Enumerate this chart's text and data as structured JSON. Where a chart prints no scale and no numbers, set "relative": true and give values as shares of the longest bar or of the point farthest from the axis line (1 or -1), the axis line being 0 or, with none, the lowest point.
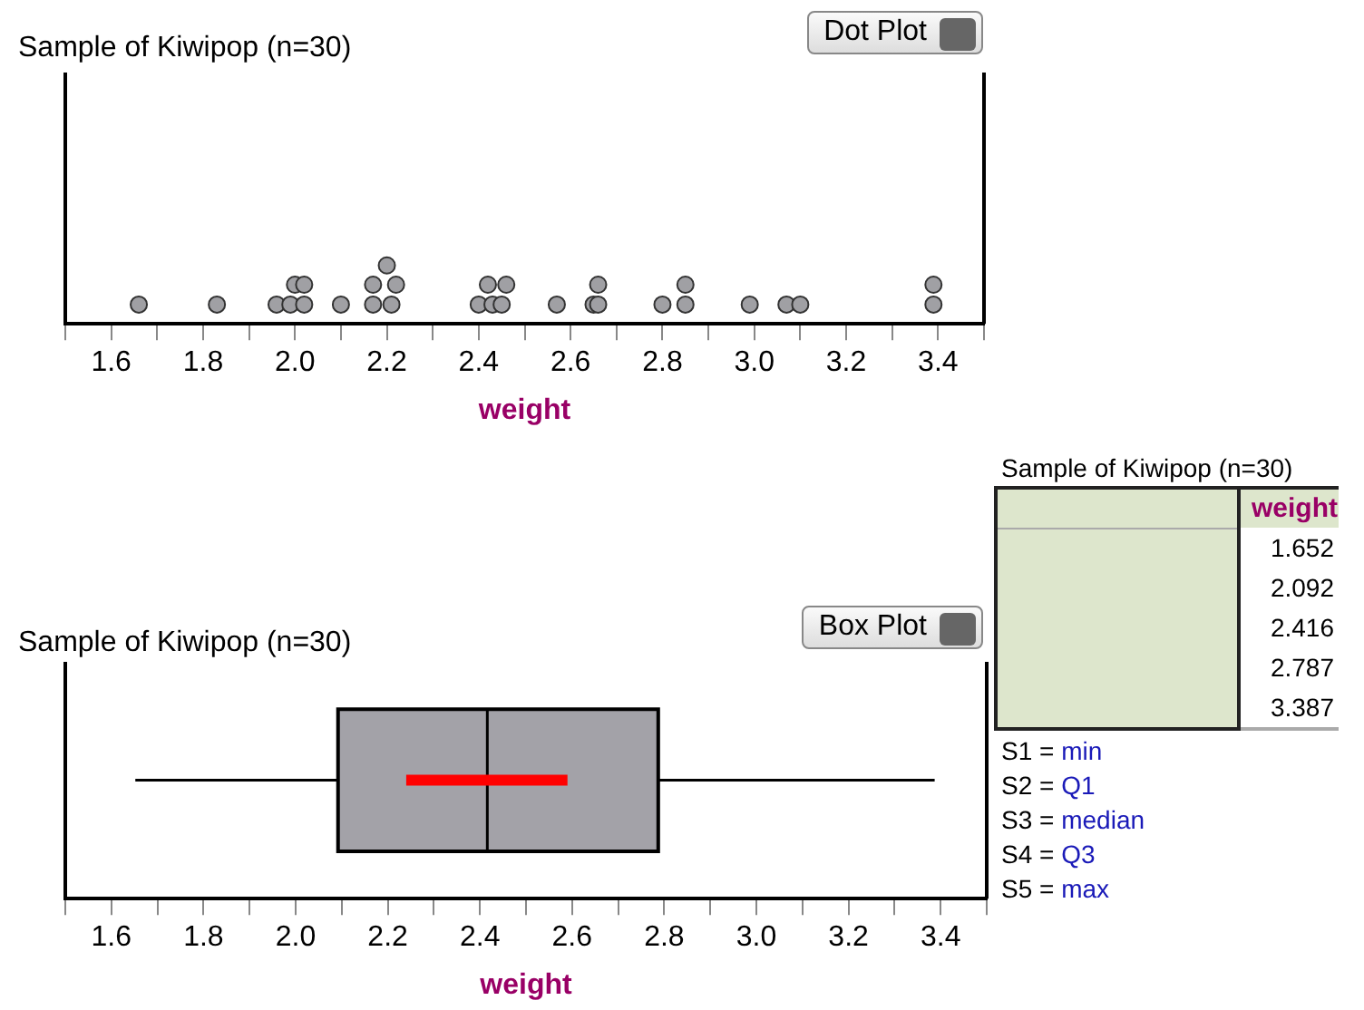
{
  "chart_data": [
    {
      "type": "scatter",
      "title": "Sample of Kiwipop (n=30)",
      "xlabel": "weight",
      "relative": true,
      "tick_labels": "x",
      "marker": "circle",
      "color": "#a0a0a4",
      "annotations": [
        "Dot Plot"
      ],
      "xlim": [
        1.5,
        3.5
      ],
      "xticks": [
        {
          "value": 1.5,
          "label": null
        },
        1.6,
        {
          "value": 1.7,
          "label": null
        },
        1.8,
        {
          "value": 1.9,
          "label": null
        },
        {
          "value": 2.0,
          "label": "2.0"
        },
        {
          "value": 2.1,
          "label": null
        },
        2.2,
        {
          "value": 2.3,
          "label": null
        },
        2.4,
        {
          "value": 2.5,
          "label": null
        },
        2.6,
        {
          "value": 2.7,
          "label": null
        },
        2.8,
        {
          "value": 2.9,
          "label": null
        },
        {
          "value": 3.0,
          "label": "3.0"
        },
        {
          "value": 3.1,
          "label": null
        },
        3.2,
        {
          "value": 3.3,
          "label": null
        },
        3.4,
        {
          "value": 3.5,
          "label": null
        }
      ],
      "x": [
        1.66,
        1.83,
        1.96,
        1.99,
        2.02,
        2.1,
        2.17,
        2.21,
        2.4,
        2.43,
        2.45,
        2.57,
        2.65,
        2.66,
        2.8,
        2.85,
        2.99,
        3.07,
        3.1,
        3.39,
        2.0,
        2.02,
        2.17,
        2.22,
        2.42,
        2.46,
        2.66,
        2.85,
        3.39,
        2.2
      ],
      "values": [
        0.33,
        0.33,
        0.33,
        0.33,
        0.33,
        0.33,
        0.33,
        0.33,
        0.33,
        0.33,
        0.33,
        0.33,
        0.33,
        0.33,
        0.33,
        0.33,
        0.33,
        0.33,
        0.33,
        0.33,
        0.67,
        0.67,
        0.67,
        0.67,
        0.67,
        0.67,
        0.67,
        0.67,
        0.67,
        1
      ]
    },
    {
      "type": "box",
      "title": "Sample of Kiwipop (n=30)",
      "xlabel": "weight",
      "orientation": "horizontal",
      "tick_labels": "x",
      "categories": [
        null
      ],
      "color": "#a3a2a8",
      "annotations": [
        "Box Plot"
      ],
      "xlim": [
        1.5,
        3.5
      ],
      "xticks": [
        {
          "value": 1.5,
          "label": null
        },
        1.6,
        {
          "value": 1.7,
          "label": null
        },
        1.8,
        {
          "value": 1.9,
          "label": null
        },
        {
          "value": 2.0,
          "label": "2.0"
        },
        {
          "value": 2.1,
          "label": null
        },
        2.2,
        {
          "value": 2.3,
          "label": null
        },
        2.4,
        {
          "value": 2.5,
          "label": null
        },
        2.6,
        {
          "value": 2.7,
          "label": null
        },
        2.8,
        {
          "value": 2.9,
          "label": null
        },
        {
          "value": 3.0,
          "label": "3.0"
        },
        {
          "value": 3.1,
          "label": null
        },
        3.2,
        {
          "value": 3.3,
          "label": null
        },
        3.4,
        {
          "value": 3.5,
          "label": null
        }
      ],
      "boxes": [
        {
          "low": 1.652,
          "q1": 2.092,
          "median": 2.416,
          "q3": 2.787,
          "high": 3.387
        }
      ],
      "bands": [
        {
          "axis": "x",
          "from": 2.24,
          "to": 2.59,
          "color": "#ff0000"
        }
      ]
    },
    {
      "type": "other",
      "title": "Sample of Kiwipop (n=30)",
      "annotations": [
        "weight",
        "1.652",
        "2.092",
        "2.416",
        "2.787",
        "3.387",
        "S1 = min",
        "S2 = Q1",
        "S3 = median",
        "S4 = Q3",
        "S5 = max"
      ]
    }
  ]
}
